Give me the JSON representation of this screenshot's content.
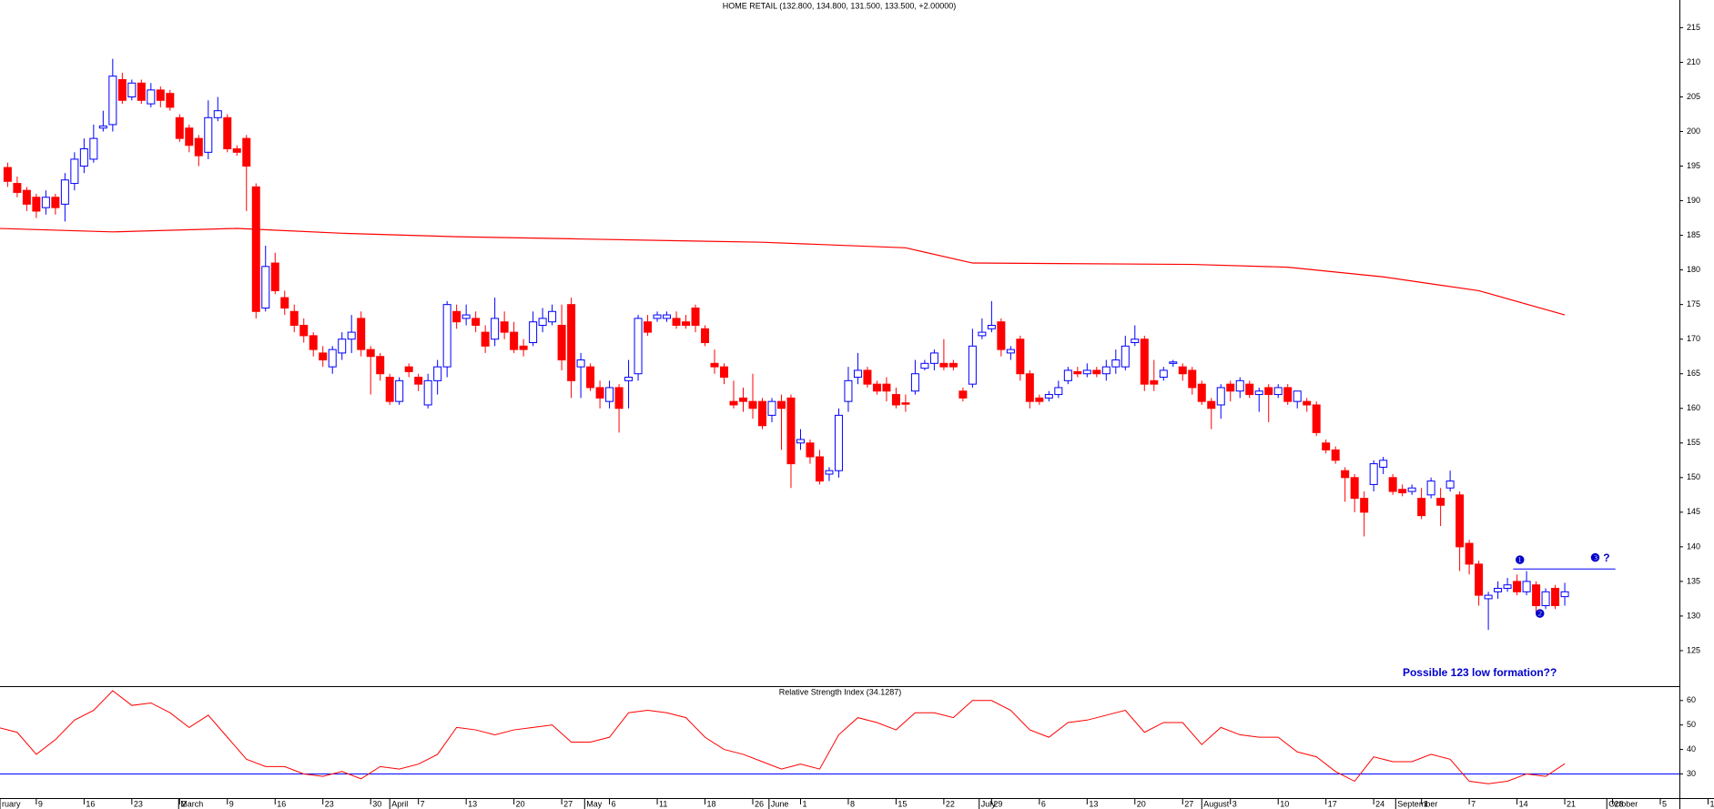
{
  "chart_data": [
    {
      "type": "candlestick",
      "title": "HOME RETAIL (132.800, 134.800, 131.500, 133.500, +2.00000)",
      "up_color": "#0000ff",
      "down_color": "#ff0000",
      "xlim": [
        0.2,
        176
      ],
      "ylim": [
        120,
        219
      ],
      "yticks": [
        125,
        130,
        135,
        140,
        145,
        150,
        155,
        160,
        165,
        170,
        175,
        180,
        185,
        190,
        195,
        200,
        205,
        210,
        215
      ],
      "x": [
        1,
        2,
        3,
        4,
        5,
        6,
        7,
        8,
        9,
        10,
        11,
        12,
        13,
        14,
        15,
        16,
        17,
        18,
        19,
        20,
        21,
        22,
        23,
        24,
        25,
        26,
        27,
        28,
        29,
        30,
        31,
        32,
        33,
        34,
        35,
        36,
        37,
        38,
        39,
        40,
        41,
        42,
        43,
        44,
        45,
        46,
        47,
        48,
        49,
        50,
        51,
        52,
        53,
        54,
        55,
        56,
        57,
        58,
        59,
        60,
        61,
        62,
        63,
        64,
        65,
        66,
        67,
        68,
        69,
        70,
        71,
        72,
        73,
        74,
        75,
        76,
        77,
        78,
        79,
        80,
        81,
        82,
        83,
        84,
        85,
        86,
        87,
        88,
        89,
        90,
        91,
        92,
        93,
        94,
        95,
        96,
        97,
        98,
        99,
        100,
        101,
        102,
        103,
        104,
        105,
        106,
        107,
        108,
        109,
        110,
        111,
        112,
        113,
        114,
        115,
        116,
        117,
        118,
        119,
        120,
        121,
        122,
        123,
        124,
        125,
        126,
        127,
        128,
        129,
        130,
        131,
        132,
        133,
        134,
        135,
        136,
        137,
        138,
        139,
        140,
        141,
        142,
        143,
        144,
        145,
        146,
        147,
        148,
        149,
        150,
        151,
        152,
        153,
        154,
        155,
        156,
        157,
        158,
        159,
        160,
        161,
        162,
        163,
        164
      ],
      "open": [
        194.8,
        192.5,
        191.5,
        190.5,
        189,
        190.5,
        189.5,
        192.5,
        195,
        196,
        200.5,
        201,
        207.5,
        205,
        207,
        204,
        206,
        205.5,
        202,
        200.5,
        199,
        197,
        202,
        202,
        197.5,
        199,
        192,
        174.5,
        181,
        176,
        174,
        172,
        170.5,
        168,
        166,
        168,
        170,
        173,
        168.5,
        167.5,
        164.5,
        161,
        166,
        164.5,
        160.5,
        164,
        166,
        174,
        173,
        173,
        171,
        170,
        172.5,
        171,
        169,
        169.5,
        172,
        172.5,
        172,
        175,
        166,
        166,
        163,
        161,
        163,
        164,
        165,
        172.5,
        173,
        173,
        173,
        172.5,
        174.5,
        171.5,
        166.5,
        166,
        161,
        161.5,
        161,
        161,
        159,
        161,
        161.5,
        155,
        155,
        153,
        150.5,
        151,
        161,
        164.5,
        165.5,
        163.5,
        163.5,
        162,
        160.8,
        162.5,
        165.8,
        166.5,
        166.5,
        166.5,
        162.5,
        163.5,
        170.5,
        171.5,
        172.5,
        168,
        170,
        165,
        161.5,
        161.5,
        162,
        164,
        165.3,
        165,
        165.5,
        165,
        166,
        166,
        169.5,
        170,
        164,
        164.5,
        166.5,
        166,
        165.5,
        163.5,
        161,
        160.5,
        163.5,
        162.5,
        163.5,
        162,
        163,
        162,
        163,
        161,
        161,
        160.5,
        155,
        154,
        151,
        150,
        147,
        149,
        151.5,
        150,
        148.3,
        148,
        147,
        147.5,
        147,
        148.5,
        147.5,
        140.5,
        137.5,
        132.5,
        133.5,
        134,
        135,
        133.5,
        134.5,
        131.5,
        134,
        132.8
      ],
      "high": [
        195.5,
        193.5,
        192,
        191,
        191.5,
        191,
        194,
        197,
        199,
        201,
        203,
        210.5,
        208.5,
        207.5,
        207.5,
        207,
        206.5,
        206,
        202.5,
        201,
        199.5,
        204.5,
        205,
        202.5,
        198,
        199.5,
        192.5,
        183.5,
        182.5,
        177,
        175,
        173,
        171,
        169,
        169,
        171,
        173.5,
        174,
        169,
        168,
        165,
        164.5,
        166.5,
        165,
        165,
        167,
        175.5,
        175,
        175,
        174,
        172,
        176,
        174,
        172.5,
        170,
        174,
        174.5,
        175,
        175,
        176,
        168,
        166.5,
        164,
        164,
        163.5,
        167,
        173.5,
        173.5,
        174,
        174,
        174,
        173.5,
        175,
        172,
        168.5,
        166.5,
        164,
        163,
        165,
        161.5,
        161.5,
        162,
        162,
        157,
        155.5,
        154,
        151.5,
        160,
        166,
        168,
        166,
        164,
        164.5,
        163,
        162,
        167,
        167,
        168.5,
        170,
        167,
        163,
        171.5,
        173,
        175.5,
        173,
        169,
        170.5,
        165.5,
        162,
        162.5,
        164,
        166,
        166,
        166.5,
        166,
        167,
        168.5,
        170.5,
        172,
        170.5,
        167,
        166,
        167,
        166.5,
        166,
        164,
        161.5,
        163.5,
        164,
        164.5,
        164,
        163,
        163.5,
        163.5,
        163.5,
        162.5,
        161.5,
        161,
        155.5,
        154.5,
        151.5,
        150.5,
        148,
        152.5,
        153,
        150.5,
        149,
        149,
        148.5,
        150,
        148.5,
        151,
        148,
        141,
        138,
        133.5,
        135,
        135.5,
        136,
        136.5,
        135,
        134,
        134.5,
        134.8
      ],
      "low": [
        192,
        190.5,
        188.5,
        187.5,
        188,
        188,
        187,
        191.5,
        194,
        195.5,
        200,
        200,
        204,
        204.5,
        204,
        203.5,
        203.5,
        203,
        198.5,
        197,
        195,
        196,
        201.5,
        197,
        196.5,
        188.5,
        173,
        174,
        176.5,
        173.5,
        171,
        169.5,
        167.5,
        166,
        165,
        167,
        168,
        167.5,
        162,
        164,
        160.5,
        160.5,
        164.5,
        162.5,
        160,
        162,
        164.5,
        171.5,
        172,
        171,
        168,
        169,
        170,
        168,
        167.5,
        169,
        171,
        172,
        165.5,
        161.5,
        161.5,
        162.5,
        160,
        160,
        156.5,
        160,
        164,
        170.5,
        172.5,
        172.5,
        171.5,
        171.5,
        171,
        169,
        165,
        163.5,
        160,
        159.5,
        158.5,
        157,
        158,
        154,
        148.5,
        154,
        152,
        149,
        149.5,
        150,
        159.5,
        163.5,
        163,
        162,
        161,
        160,
        159.5,
        162,
        165.5,
        165.5,
        165.5,
        165.5,
        161,
        163,
        170,
        171,
        167.5,
        167,
        164,
        160,
        160.5,
        161,
        161.5,
        163.5,
        164.5,
        164.5,
        164.5,
        164,
        165,
        165.5,
        169,
        162.5,
        162.5,
        164,
        166,
        164,
        162,
        160.5,
        157,
        158.5,
        161,
        161.5,
        161.5,
        159.5,
        158,
        161.5,
        160.5,
        160,
        159.5,
        156,
        153.5,
        152,
        146.5,
        145,
        141.5,
        148,
        150.5,
        147.5,
        147.3,
        147.5,
        144,
        147,
        143,
        148,
        136.5,
        136,
        131.5,
        128,
        132.5,
        133.5,
        133,
        133,
        130.5,
        131,
        131,
        131.5
      ],
      "close": [
        192.8,
        191.2,
        189.5,
        188.5,
        190.5,
        189,
        193,
        196,
        197.5,
        199,
        200.8,
        208,
        204.5,
        207,
        204.5,
        206,
        204.5,
        203.5,
        199,
        198,
        196.5,
        202,
        203,
        197.5,
        197,
        195,
        174,
        180.5,
        177,
        174.5,
        172,
        170.5,
        168.5,
        167,
        168.5,
        170,
        171,
        168.5,
        167.5,
        165,
        161,
        164,
        165.3,
        163.5,
        164,
        166,
        175,
        172.5,
        173.5,
        172,
        169,
        173,
        171,
        168.5,
        168.5,
        172.5,
        173,
        174,
        167,
        164,
        167,
        163,
        161.5,
        163,
        160,
        164.5,
        173,
        171,
        173.5,
        173.5,
        172,
        172,
        172,
        169.5,
        166,
        164.5,
        160.5,
        161,
        160,
        157.5,
        161,
        160,
        152,
        155.5,
        153,
        149.5,
        151,
        159,
        164,
        165.5,
        163.5,
        162.5,
        162.5,
        160.5,
        160.6,
        165,
        166.5,
        168,
        166,
        166,
        161.5,
        169,
        171,
        172,
        168.5,
        168.5,
        165,
        161,
        161,
        162,
        163,
        165.5,
        165,
        165.5,
        165,
        166,
        167,
        169,
        170,
        163.5,
        163.5,
        165.5,
        166.7,
        165,
        163,
        161,
        160,
        163,
        162.5,
        164,
        162,
        162.5,
        162,
        163,
        161,
        162.5,
        160.5,
        156.5,
        154,
        152.5,
        150,
        147,
        145,
        152,
        152.5,
        148,
        147.8,
        148.5,
        144.5,
        149.5,
        146,
        149.5,
        140,
        137.5,
        133,
        133,
        134,
        134.5,
        133.5,
        135,
        131.5,
        133.5,
        131.5,
        133.5
      ],
      "moving_average": {
        "color": "#ff0000",
        "x": [
          0,
          12,
          25,
          36,
          48,
          60,
          80,
          95,
          102,
          125,
          135,
          145,
          150,
          155,
          164
        ],
        "values": [
          186,
          185.5,
          186,
          185.3,
          184.8,
          184.5,
          184,
          183.2,
          181,
          180.8,
          180.4,
          179,
          178,
          177,
          173.5
        ]
      },
      "level": {
        "value": 136.8,
        "x": [
          158.6,
          169.3
        ],
        "color": "#0000ff"
      },
      "annotation_color": "#0000cc",
      "annotations": [
        {
          "text": "❶",
          "x": 159.3,
          "y": 138
        },
        {
          "text": "❷",
          "x": 161.4,
          "y": 130.2
        },
        {
          "text": "❸ ?",
          "x": 167.7,
          "y": 138.3
        },
        {
          "text": "Possible 123 low formation??",
          "x": 155.1,
          "y": 121.7
        }
      ]
    },
    {
      "type": "line",
      "title": "Relative Strength Index (34.1287)",
      "color": "#ff0000",
      "xlim": [
        0.2,
        176
      ],
      "ylim": [
        20.5,
        65.5
      ],
      "yticks": [
        30,
        40,
        50,
        60
      ],
      "reference": {
        "value": 30,
        "color": "#0000ff"
      },
      "x": [
        0,
        2,
        4,
        6,
        8,
        10,
        12,
        14,
        16,
        18,
        20,
        22,
        24,
        26,
        28,
        30,
        32,
        34,
        36,
        38,
        40,
        42,
        44,
        46,
        48,
        50,
        52,
        54,
        56,
        58,
        60,
        62,
        64,
        66,
        68,
        70,
        72,
        74,
        76,
        78,
        80,
        82,
        84,
        86,
        88,
        90,
        92,
        94,
        96,
        98,
        100,
        102,
        104,
        106,
        108,
        110,
        112,
        114,
        116,
        118,
        120,
        122,
        124,
        126,
        128,
        130,
        132,
        134,
        136,
        138,
        140,
        142,
        144,
        146,
        148,
        150,
        152,
        154,
        156,
        158,
        160,
        162,
        164
      ],
      "values": [
        49,
        47,
        38,
        44,
        52,
        56,
        64,
        58,
        59,
        55,
        49,
        54,
        45,
        36,
        33,
        33,
        30,
        29,
        31,
        28,
        33,
        32,
        34,
        38,
        49,
        48,
        46,
        48,
        49,
        50,
        43,
        43,
        45,
        55,
        56,
        55,
        53,
        45,
        40,
        38,
        35,
        32,
        34,
        32,
        46,
        53,
        51,
        48,
        55,
        55,
        53,
        60,
        60,
        56,
        48,
        45,
        51,
        52,
        54,
        56,
        47,
        51,
        51,
        42,
        49,
        46,
        45,
        45,
        39,
        37,
        31,
        27,
        37,
        35,
        35,
        38,
        36,
        27,
        26,
        27,
        30,
        29,
        34.13
      ],
      "xticks": [
        {
          "value": 4,
          "label": "9"
        },
        {
          "value": 9,
          "label": "16"
        },
        {
          "value": 14,
          "label": "23"
        },
        {
          "value": 19,
          "label": "2"
        },
        {
          "value": 24,
          "label": "9"
        },
        {
          "value": 29,
          "label": "16"
        },
        {
          "value": 34,
          "label": "23"
        },
        {
          "value": 39,
          "label": "30"
        },
        {
          "value": 44,
          "label": "7"
        },
        {
          "value": 49,
          "label": "13"
        },
        {
          "value": 54,
          "label": "20"
        },
        {
          "value": 59,
          "label": "27"
        },
        {
          "value": 64,
          "label": "6"
        },
        {
          "value": 69,
          "label": "11"
        },
        {
          "value": 74,
          "label": "18"
        },
        {
          "value": 79,
          "label": "26"
        },
        {
          "value": 84,
          "label": "1"
        },
        {
          "value": 89,
          "label": "8"
        },
        {
          "value": 94,
          "label": "15"
        },
        {
          "value": 99,
          "label": "22"
        },
        {
          "value": 104,
          "label": "29"
        },
        {
          "value": 109,
          "label": "6"
        },
        {
          "value": 114,
          "label": "13"
        },
        {
          "value": 119,
          "label": "20"
        },
        {
          "value": 124,
          "label": "27"
        },
        {
          "value": 129,
          "label": "3"
        },
        {
          "value": 134,
          "label": "10"
        },
        {
          "value": 139,
          "label": "17"
        },
        {
          "value": 144,
          "label": "24"
        },
        {
          "value": 149,
          "label": "1"
        },
        {
          "value": 154,
          "label": "7"
        },
        {
          "value": 159,
          "label": "14"
        },
        {
          "value": 164,
          "label": "21"
        },
        {
          "value": 169,
          "label": "28"
        },
        {
          "value": 174,
          "label": "5"
        },
        {
          "value": 179,
          "label": "1"
        }
      ],
      "month_ticks": [
        {
          "value": 0.2,
          "label": "ruary"
        },
        {
          "value": 18.9,
          "label": "March"
        },
        {
          "value": 41,
          "label": "April"
        },
        {
          "value": 61.4,
          "label": "May"
        },
        {
          "value": 80.7,
          "label": "June"
        },
        {
          "value": 102.7,
          "label": "July"
        },
        {
          "value": 126,
          "label": "August"
        },
        {
          "value": 146.3,
          "label": "September"
        },
        {
          "value": 168.4,
          "label": "October"
        }
      ]
    }
  ]
}
